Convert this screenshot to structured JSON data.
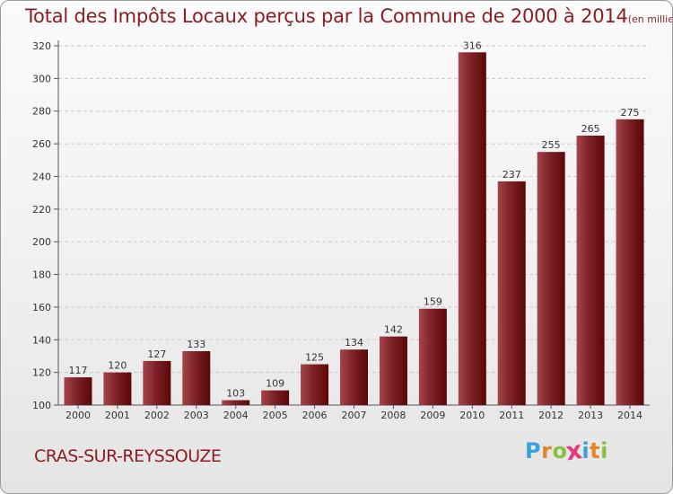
{
  "title": "Total des Impôts Locaux perçus par la Commune de 2000 à 2014",
  "title_unit": "(en milliers d'€)",
  "commune": "CRAS-SUR-REYSSOUZE",
  "logo": {
    "letters": [
      "P",
      "r",
      "o",
      "x",
      "i",
      "t",
      "i"
    ],
    "colors": [
      "#3aa0d8",
      "#e8832a",
      "#8cbf3f",
      "#e53a7a",
      "#3aa0d8",
      "#e8832a",
      "#8cbf3f"
    ]
  },
  "colors": {
    "bar_top": "#8f2f35",
    "bar_bottom": "#5a0000",
    "text": "#8b1d22",
    "axis_text": "#333333",
    "grid": "#c8c8c8"
  },
  "chart_data": {
    "type": "bar",
    "title": "Total des Impôts Locaux perçus par la Commune de 2000 à 2014",
    "xlabel": "",
    "ylabel": "",
    "categories": [
      "2000",
      "2001",
      "2002",
      "2003",
      "2004",
      "2005",
      "2006",
      "2007",
      "2008",
      "2009",
      "2010",
      "2011",
      "2012",
      "2013",
      "2014"
    ],
    "values": [
      117,
      120,
      127,
      133,
      103,
      109,
      125,
      134,
      142,
      159,
      316,
      237,
      255,
      265,
      275
    ],
    "ylim": [
      100,
      320
    ],
    "yticks": [
      100,
      120,
      140,
      160,
      180,
      200,
      220,
      240,
      260,
      280,
      300,
      320
    ],
    "grid": true
  }
}
